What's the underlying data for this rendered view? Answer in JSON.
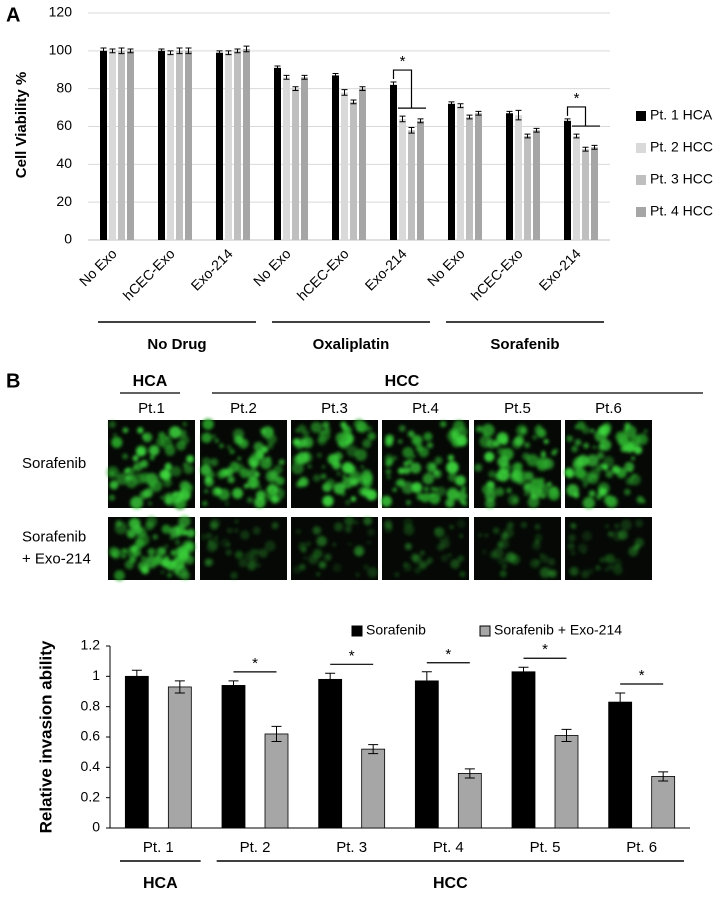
{
  "chart_data": [
    {
      "type": "bar",
      "panel_label": "A",
      "y_label": "Cell Viability %",
      "categories": [
        "No Exo",
        "hCEC-Exo",
        "Exo-214",
        "No Exo",
        "hCEC-Exo",
        "Exo-214",
        "No Exo",
        "hCEC-Exo",
        "Exo-214"
      ],
      "groups": [
        "No Drug",
        "Oxaliplatin",
        "Sorafenib"
      ],
      "series": [
        {
          "name": "Pt. 1 HCA",
          "color": "#000000",
          "values": [
            100,
            100,
            99,
            91,
            87,
            82,
            72,
            67,
            63
          ],
          "errors": [
            1.5,
            1,
            1,
            1,
            1,
            1.5,
            1,
            1,
            1
          ]
        },
        {
          "name": "Pt. 2 HCC",
          "color": "#d9d9d9",
          "values": [
            100,
            99,
            99,
            86,
            78,
            64,
            71,
            66,
            55
          ],
          "errors": [
            1,
            1,
            1,
            1,
            1.5,
            1.5,
            1,
            2.5,
            1
          ]
        },
        {
          "name": "Pt. 3 HCC",
          "color": "#bfbfbf",
          "values": [
            100,
            100,
            100,
            80,
            73,
            58,
            65,
            55,
            48
          ],
          "errors": [
            1.5,
            1.5,
            1,
            1,
            1,
            1.5,
            1,
            1,
            1
          ]
        },
        {
          "name": "Pt. 4 HCC",
          "color": "#a6a6a6",
          "values": [
            100,
            100,
            101,
            86,
            80,
            63,
            67,
            58,
            49
          ],
          "errors": [
            1,
            1.5,
            1.5,
            1,
            1,
            1,
            1,
            1,
            1
          ]
        }
      ],
      "ylim": [
        0,
        120
      ],
      "yticks": [
        0,
        20,
        40,
        60,
        80,
        100,
        120
      ],
      "grid": true,
      "legend": "right",
      "annotations": [
        "*",
        "*"
      ]
    },
    {
      "type": "bar",
      "y_label": "Relative invasion ability",
      "categories": [
        "Pt. 1",
        "Pt. 2",
        "Pt. 3",
        "Pt. 4",
        "Pt. 5",
        "Pt. 6"
      ],
      "groups": [
        "HCA",
        "HCC"
      ],
      "series": [
        {
          "name": "Sorafenib",
          "color": "#000000",
          "values": [
            1.0,
            0.94,
            0.98,
            0.97,
            1.03,
            0.83
          ],
          "errors": [
            0.04,
            0.03,
            0.04,
            0.06,
            0.03,
            0.06
          ]
        },
        {
          "name": "Sorafenib + Exo-214",
          "color": "#a6a6a6",
          "values": [
            0.93,
            0.62,
            0.52,
            0.36,
            0.61,
            0.34
          ],
          "errors": [
            0.04,
            0.05,
            0.03,
            0.03,
            0.04,
            0.03
          ]
        }
      ],
      "ylim": [
        0,
        1.2
      ],
      "yticks": [
        0,
        0.2,
        0.4,
        0.6,
        0.8,
        1,
        1.2
      ],
      "grid": false,
      "legend": "top",
      "annotations": [
        "*",
        "*",
        "*",
        "*",
        "*"
      ]
    }
  ],
  "image_panel": {
    "panel_label": "B",
    "group_headers": [
      "HCA",
      "HCC"
    ],
    "columns": [
      "Pt.1",
      "Pt.2",
      "Pt.3",
      "Pt.4",
      "Pt.5",
      "Pt.6"
    ],
    "rows": [
      [
        "Sorafenib"
      ],
      [
        "Sorafenib",
        "+ Exo-214"
      ]
    ]
  }
}
